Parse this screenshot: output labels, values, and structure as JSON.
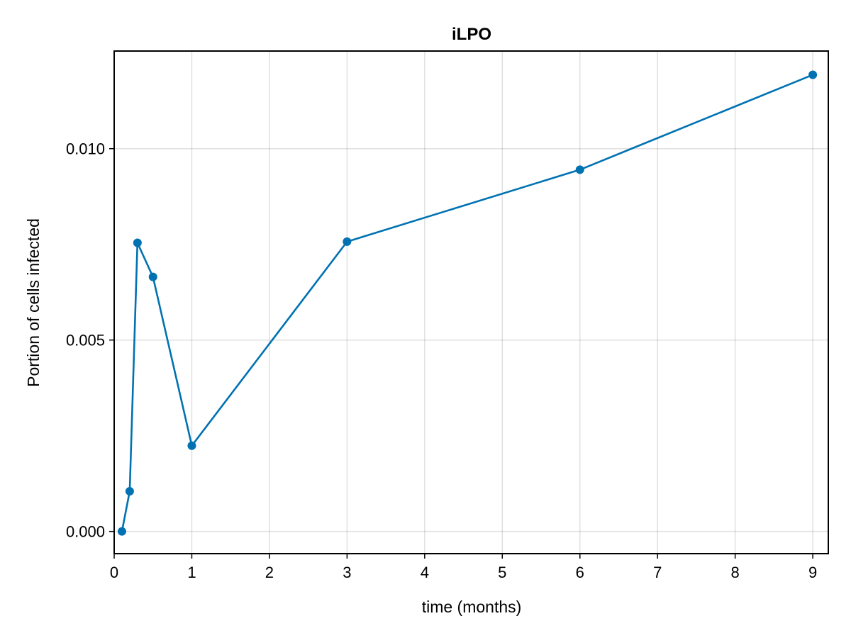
{
  "chart_data": {
    "type": "line",
    "title": "iLPO",
    "xlabel": "time (months)",
    "ylabel": "Portion of cells infected",
    "xlim": [
      0,
      9.2
    ],
    "ylim": [
      -0.00058,
      0.01255
    ],
    "xticks": [
      0,
      1,
      2,
      3,
      4,
      5,
      6,
      7,
      8,
      9
    ],
    "xtick_labels": [
      "0",
      "1",
      "2",
      "3",
      "4",
      "5",
      "6",
      "7",
      "8",
      "9"
    ],
    "yticks": [
      0.0,
      0.005,
      0.01
    ],
    "ytick_labels": [
      "0.000",
      "0.005",
      "0.010"
    ],
    "grid": true,
    "series": [
      {
        "x": [
          0.1,
          0.2,
          0.3,
          0.5,
          1,
          3,
          6,
          9
        ],
        "y": [
          0.0,
          0.00105,
          0.00754,
          0.00665,
          0.00224,
          0.00757,
          0.00945,
          0.01193
        ],
        "color": "#0072b2",
        "marker": "circle"
      }
    ]
  }
}
